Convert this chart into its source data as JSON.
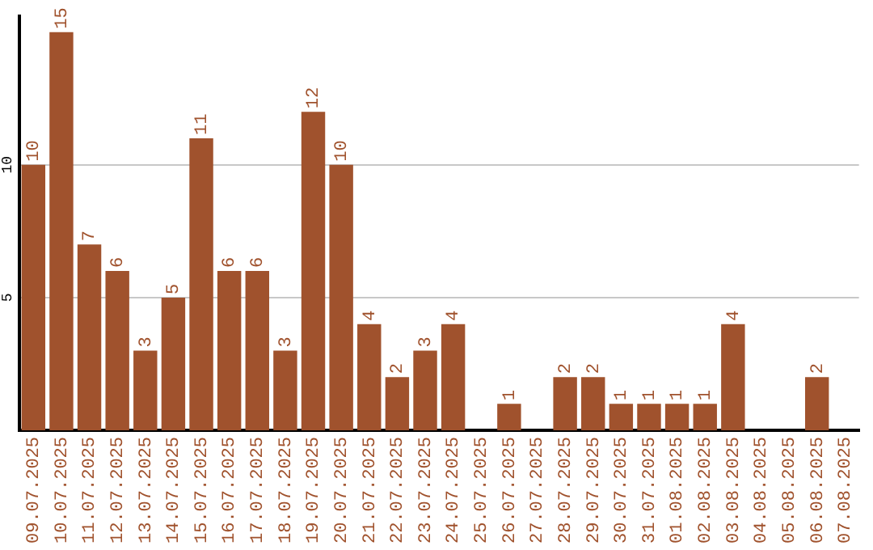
{
  "chart_data": {
    "type": "bar",
    "categories": [
      "09.07.2025",
      "10.07.2025",
      "11.07.2025",
      "12.07.2025",
      "13.07.2025",
      "14.07.2025",
      "15.07.2025",
      "16.07.2025",
      "17.07.2025",
      "18.07.2025",
      "19.07.2025",
      "20.07.2025",
      "21.07.2025",
      "22.07.2025",
      "23.07.2025",
      "24.07.2025",
      "25.07.2025",
      "26.07.2025",
      "27.07.2025",
      "28.07.2025",
      "29.07.2025",
      "30.07.2025",
      "31.07.2025",
      "01.08.2025",
      "02.08.2025",
      "03.08.2025",
      "04.08.2025",
      "05.08.2025",
      "06.08.2025",
      "07.08.2025"
    ],
    "values": [
      10,
      15,
      7,
      6,
      3,
      5,
      11,
      6,
      6,
      3,
      12,
      10,
      4,
      2,
      3,
      4,
      null,
      1,
      null,
      2,
      2,
      1,
      1,
      1,
      1,
      4,
      null,
      null,
      2,
      null
    ],
    "color": "#a0522d",
    "ylim": [
      0,
      15.6
    ],
    "yticks": [
      5,
      10
    ],
    "grid": "y",
    "data_labels": true
  }
}
